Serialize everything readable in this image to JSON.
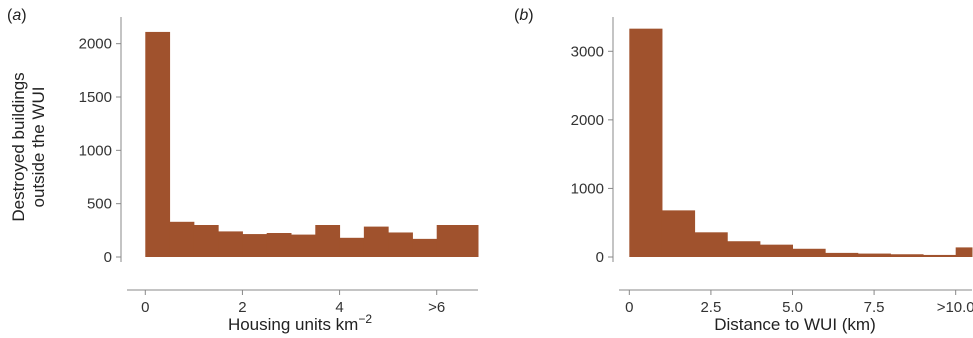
{
  "colors": {
    "bar": "#a0522d",
    "axis": "#888888"
  },
  "chart_data": [
    {
      "type": "bar",
      "panel_label": "(a)",
      "title": "",
      "xlabel": "Housing units km",
      "xlabel_sup": "−2",
      "ylabel_line1": "Destroyed buildings",
      "ylabel_line2": "outside the WUI",
      "xlim": [
        -0.5,
        6.85
      ],
      "ylim": [
        0,
        2250
      ],
      "bin_width": 0.5,
      "bin_starts": [
        0,
        0.5,
        1,
        1.5,
        2,
        2.5,
        3,
        3.5,
        4,
        4.5,
        5,
        5.5,
        6
      ],
      "bin_ends": [
        0.5,
        1,
        1.5,
        2,
        2.5,
        3,
        3.5,
        4,
        4.5,
        5,
        5.5,
        6,
        6.85
      ],
      "values": [
        2110,
        330,
        300,
        240,
        215,
        225,
        210,
        300,
        180,
        285,
        230,
        170,
        300
      ],
      "xticks": [
        0,
        2,
        4,
        6
      ],
      "xtick_labels": [
        "0",
        "2",
        "4",
        ">6"
      ],
      "yticks": [
        0,
        500,
        1000,
        1500,
        2000
      ],
      "ytick_labels": [
        "0",
        "500",
        "1000",
        "1500",
        "2000"
      ]
    },
    {
      "type": "bar",
      "panel_label": "(b)",
      "title": "",
      "xlabel": "Distance to WUI (km)",
      "xlim": [
        -0.5,
        10.5
      ],
      "ylim": [
        0,
        3500
      ],
      "bin_width": 1,
      "bin_starts": [
        0,
        1,
        2,
        3,
        4,
        5,
        6,
        7,
        8,
        9,
        10
      ],
      "bin_ends": [
        1,
        2,
        3,
        4,
        5,
        6,
        7,
        8,
        9,
        10,
        10.5
      ],
      "values": [
        3330,
        680,
        360,
        230,
        180,
        120,
        60,
        50,
        40,
        30,
        140
      ],
      "xticks": [
        0,
        2.5,
        5,
        7.5,
        10
      ],
      "xtick_labels": [
        "0",
        "2.5",
        "5.0",
        "7.5",
        ">10.0"
      ],
      "yticks": [
        0,
        1000,
        2000,
        3000
      ],
      "ytick_labels": [
        "0",
        "1000",
        "2000",
        "3000"
      ]
    }
  ]
}
